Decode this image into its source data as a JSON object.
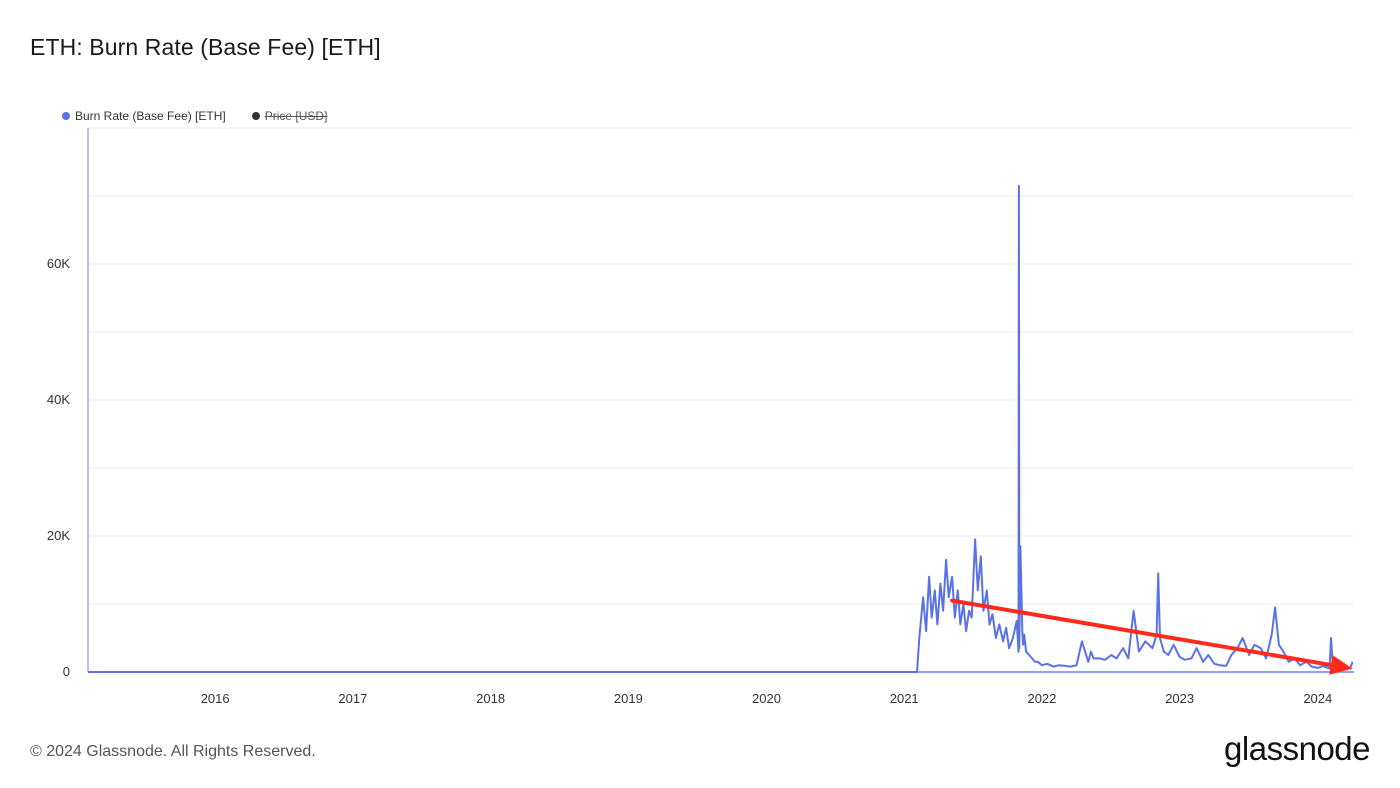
{
  "title": "ETH: Burn Rate (Base Fee) [ETH]",
  "legend": [
    {
      "label": "Burn Rate (Base Fee) [ETH]",
      "color": "#5b72e6",
      "active": true
    },
    {
      "label": "Price [USD]",
      "color": "#333333",
      "active": false
    }
  ],
  "footer": "© 2024 Glassnode. All Rights Reserved.",
  "brand": "glassnode",
  "chart_data": {
    "type": "line",
    "title": "ETH: Burn Rate (Base Fee) [ETH]",
    "xlabel": "",
    "ylabel": "",
    "x_ticks": [
      "2016",
      "2017",
      "2018",
      "2019",
      "2020",
      "2021",
      "2022",
      "2023",
      "2024"
    ],
    "y_ticks": [
      {
        "value": 0,
        "label": "0"
      },
      {
        "value": 20000,
        "label": "20K"
      },
      {
        "value": 40000,
        "label": "40K"
      },
      {
        "value": 60000,
        "label": "60K"
      }
    ],
    "xlim": [
      "2015-07-30",
      "2024-10-05"
    ],
    "ylim": [
      0,
      80000
    ],
    "grid": true,
    "legend_position": "top-left",
    "series": [
      {
        "name": "Burn Rate (Base Fee) [ETH]",
        "color": "#5b72e6",
        "x": [
          "2015-07-30",
          "2021-08-04",
          "2021-08-10",
          "2021-08-20",
          "2021-08-28",
          "2021-09-05",
          "2021-09-12",
          "2021-09-20",
          "2021-09-27",
          "2021-10-05",
          "2021-10-12",
          "2021-10-20",
          "2021-10-27",
          "2021-11-05",
          "2021-11-12",
          "2021-11-20",
          "2021-11-27",
          "2021-12-05",
          "2021-12-12",
          "2021-12-20",
          "2021-12-27",
          "2022-01-05",
          "2022-01-12",
          "2022-01-20",
          "2022-01-27",
          "2022-02-05",
          "2022-02-12",
          "2022-02-20",
          "2022-03-01",
          "2022-03-10",
          "2022-03-20",
          "2022-03-28",
          "2022-04-05",
          "2022-04-15",
          "2022-04-25",
          "2022-04-30",
          "2022-05-01",
          "2022-05-02",
          "2022-05-05",
          "2022-05-10",
          "2022-05-12",
          "2022-05-15",
          "2022-05-20",
          "2022-05-28",
          "2022-06-05",
          "2022-06-12",
          "2022-06-20",
          "2022-07-01",
          "2022-07-15",
          "2022-08-01",
          "2022-08-15",
          "2022-09-01",
          "2022-09-15",
          "2022-10-01",
          "2022-10-15",
          "2022-11-01",
          "2022-11-08",
          "2022-11-15",
          "2022-12-01",
          "2022-12-15",
          "2023-01-01",
          "2023-01-15",
          "2023-02-01",
          "2023-02-15",
          "2023-03-01",
          "2023-03-15",
          "2023-04-01",
          "2023-04-20",
          "2023-05-01",
          "2023-05-05",
          "2023-05-10",
          "2023-05-20",
          "2023-06-01",
          "2023-06-15",
          "2023-07-01",
          "2023-07-15",
          "2023-08-01",
          "2023-08-15",
          "2023-09-01",
          "2023-09-15",
          "2023-10-01",
          "2023-10-15",
          "2023-11-01",
          "2023-11-15",
          "2023-12-01",
          "2023-12-15",
          "2024-01-01",
          "2024-01-15",
          "2024-02-01",
          "2024-02-15",
          "2024-03-01",
          "2024-03-10",
          "2024-03-20",
          "2024-04-01",
          "2024-04-15",
          "2024-05-01",
          "2024-05-15",
          "2024-06-01",
          "2024-06-15",
          "2024-07-01",
          "2024-07-15",
          "2024-08-01",
          "2024-08-05",
          "2024-08-10",
          "2024-08-20",
          "2024-09-01",
          "2024-09-15",
          "2024-09-25",
          "2024-10-01"
        ],
        "y": [
          0,
          0,
          5000,
          11000,
          6000,
          14000,
          8000,
          12000,
          7000,
          13000,
          9000,
          16500,
          11000,
          14000,
          8000,
          12000,
          7000,
          10000,
          6000,
          9000,
          8000,
          19500,
          12000,
          17000,
          9000,
          12000,
          7000,
          8500,
          5000,
          7000,
          4500,
          6500,
          3500,
          5000,
          7500,
          3000,
          71500,
          3500,
          18500,
          6000,
          4000,
          5500,
          3000,
          2500,
          2000,
          1500,
          1500,
          1000,
          1200,
          800,
          1000,
          900,
          800,
          1000,
          4500,
          1500,
          3000,
          2000,
          2000,
          1800,
          2500,
          2000,
          3500,
          2000,
          9000,
          3000,
          4500,
          3500,
          5500,
          14500,
          5000,
          3000,
          2500,
          4000,
          2200,
          1800,
          2000,
          3500,
          1500,
          2500,
          1200,
          1000,
          900,
          2500,
          3500,
          5000,
          2500,
          4000,
          3500,
          2000,
          5500,
          9500,
          4000,
          3000,
          1500,
          2000,
          1000,
          1500,
          800,
          600,
          900,
          500,
          5000,
          800,
          900,
          600,
          700,
          500,
          1500
        ]
      }
    ],
    "annotations": [
      {
        "type": "arrow",
        "color": "#ff2a1a",
        "from": {
          "x": "2021-11-05",
          "y": 10500
        },
        "to": {
          "x": "2024-10-01",
          "y": 500
        }
      }
    ]
  }
}
